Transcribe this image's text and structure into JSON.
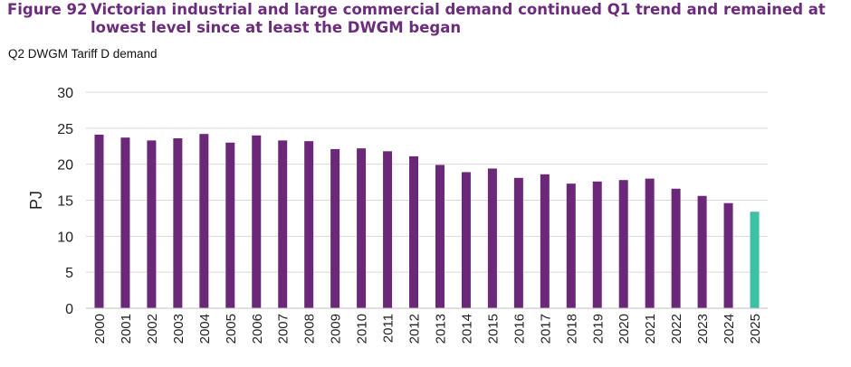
{
  "figure_label": "Figure 92",
  "title": "Victorian industrial and large commercial demand continued Q1 trend and remained at lowest level since at least the DWGM began",
  "colors": {
    "title": "#6b2d7b",
    "bar": "#6b2878",
    "highlight": "#3fbfa5",
    "grid": "#d9d9d9"
  },
  "chart_data": {
    "type": "bar",
    "title": "Q2 DWGM Tariff D demand",
    "xlabel": "",
    "ylabel": "PJ",
    "ylim": [
      0,
      30
    ],
    "yticks": [
      0,
      5,
      10,
      15,
      20,
      25,
      30
    ],
    "grid": true,
    "categories": [
      "2000",
      "2001",
      "2002",
      "2003",
      "2004",
      "2005",
      "2006",
      "2007",
      "2008",
      "2009",
      "2010",
      "2011",
      "2012",
      "2013",
      "2014",
      "2015",
      "2016",
      "2017",
      "2018",
      "2019",
      "2020",
      "2021",
      "2022",
      "2023",
      "2024",
      "2025"
    ],
    "values": [
      24.1,
      23.7,
      23.3,
      23.6,
      24.2,
      23.0,
      24.0,
      23.3,
      23.2,
      22.1,
      22.2,
      21.8,
      21.1,
      19.9,
      18.9,
      19.4,
      18.1,
      18.6,
      17.3,
      17.6,
      17.8,
      18.0,
      16.6,
      15.6,
      14.6,
      13.4
    ],
    "highlight_category": "2025"
  }
}
